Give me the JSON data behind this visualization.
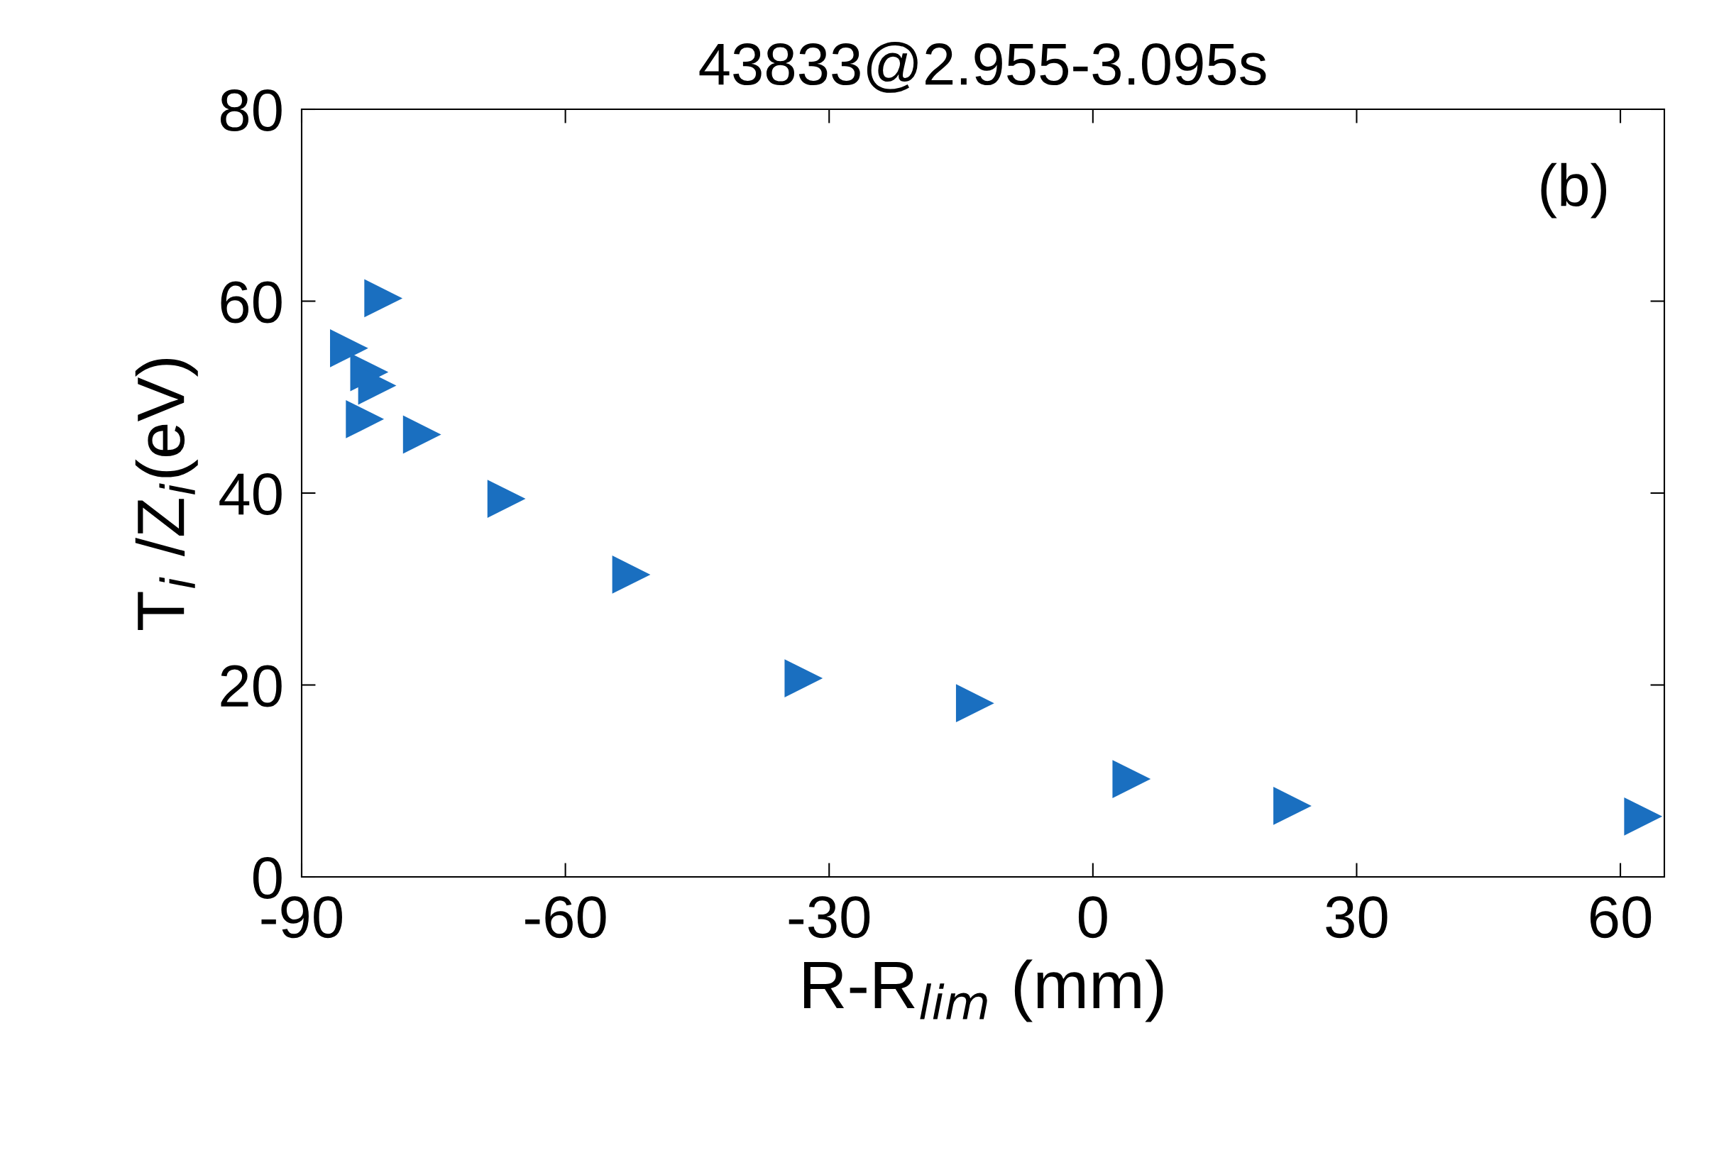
{
  "chart_data": {
    "type": "scatter",
    "title": "43833@2.955-3.095s",
    "xlabel": "R-R$_{lim}$ (mm)",
    "ylabel": "T$_{i}$ /Z$_{i}$(eV)",
    "annotations": [
      "(b)"
    ],
    "x": [
      -80.7,
      -84.6,
      -82.3,
      -81.4,
      -82.8,
      -76.3,
      -66.7,
      -52.5,
      -32.9,
      -13.4,
      4.4,
      22.7,
      62.6
    ],
    "series": [
      {
        "color": "#1a6fc0",
        "values": [
          60.3,
          55.1,
          52.6,
          51.2,
          47.7,
          46.1,
          39.4,
          31.5,
          20.7,
          18.1,
          10.2,
          7.4,
          6.3
        ]
      }
    ],
    "xlim": [
      -90,
      65
    ],
    "xticks": [
      -90,
      -60,
      -30,
      0,
      30,
      60
    ],
    "ylim": [
      0,
      80
    ],
    "yticks": [
      0,
      20,
      40,
      60,
      80
    ],
    "grid": false,
    "legend": false,
    "marker": "triangle"
  }
}
